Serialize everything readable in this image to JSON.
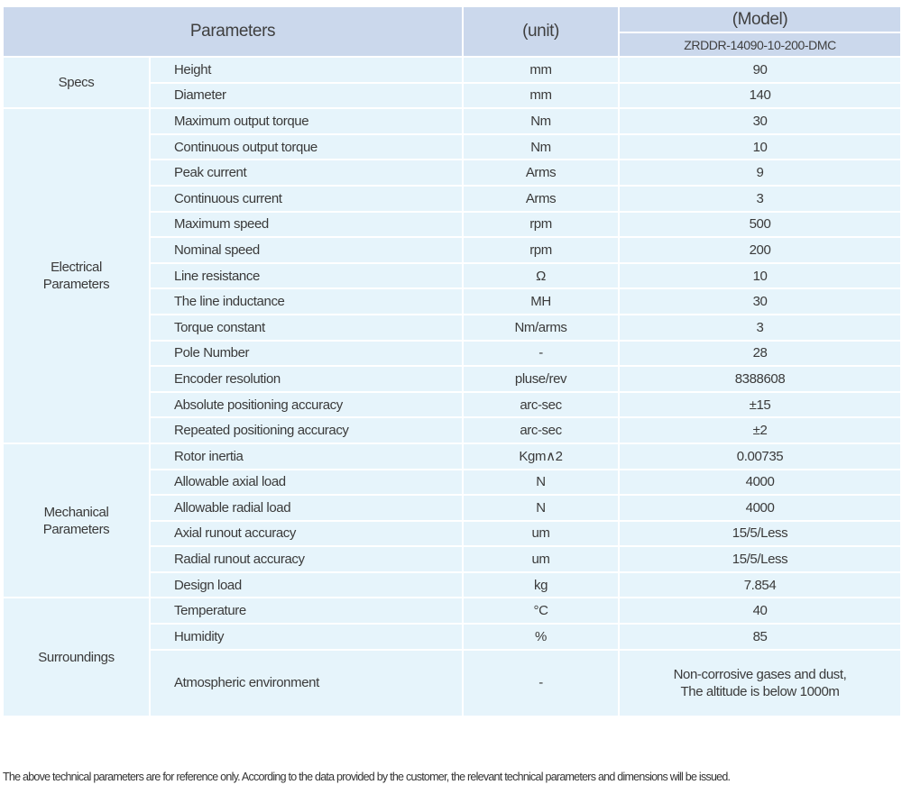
{
  "header": {
    "parameters": "Parameters",
    "unit": "(unit)",
    "model_label": "(Model)",
    "model": "ZRDDR-14090-10-200-DMC"
  },
  "groups": [
    {
      "name": "Specs",
      "rows": [
        {
          "param": "Height",
          "unit": "mm",
          "value": "90"
        },
        {
          "param": "Diameter",
          "unit": "mm",
          "value": "140"
        }
      ]
    },
    {
      "name": "Electrical Parameters",
      "rows": [
        {
          "param": "Maximum output torque",
          "unit": "Nm",
          "value": "30"
        },
        {
          "param": "Continuous output torque",
          "unit": "Nm",
          "value": "10"
        },
        {
          "param": "Peak current",
          "unit": "Arms",
          "value": "9"
        },
        {
          "param": "Continuous current",
          "unit": "Arms",
          "value": "3"
        },
        {
          "param": "Maximum speed",
          "unit": "rpm",
          "value": "500"
        },
        {
          "param": "Nominal speed",
          "unit": "rpm",
          "value": "200"
        },
        {
          "param": "Line resistance",
          "unit": "Ω",
          "value": "10"
        },
        {
          "param": "The line inductance",
          "unit": "MH",
          "value": "30"
        },
        {
          "param": "Torque constant",
          "unit": "Nm/arms",
          "value": "3"
        },
        {
          "param": "Pole Number",
          "unit": "-",
          "value": "28"
        },
        {
          "param": "Encoder resolution",
          "unit": "pluse/rev",
          "value": "8388608"
        },
        {
          "param": "Absolute positioning accuracy",
          "unit": "arc-sec",
          "value": "±15"
        },
        {
          "param": "Repeated positioning accuracy",
          "unit": "arc-sec",
          "value": "±2"
        }
      ]
    },
    {
      "name": "Mechanical Parameters",
      "rows": [
        {
          "param": "Rotor inertia",
          "unit": "Kgm∧2",
          "value": "0.00735"
        },
        {
          "param": "Allowable axial load",
          "unit": "N",
          "value": "4000"
        },
        {
          "param": "Allowable radial load",
          "unit": "N",
          "value": "4000"
        },
        {
          "param": "Axial runout accuracy",
          "unit": "um",
          "value": "15/5/Less"
        },
        {
          "param": "Radial runout accuracy",
          "unit": "um",
          "value": "15/5/Less"
        },
        {
          "param": "Design load",
          "unit": "kg",
          "value": "7.854"
        }
      ]
    },
    {
      "name": "Surroundings",
      "rows": [
        {
          "param": "Temperature",
          "unit": "°C",
          "value": "40"
        },
        {
          "param": "Humidity",
          "unit": "%",
          "value": "85"
        },
        {
          "param": "Atmospheric environment",
          "unit": "-",
          "value": "Non-corrosive gases and dust,",
          "value2": "The altitude is below 1000m"
        }
      ]
    }
  ],
  "note": "The above technical parameters are for reference only. According to the data provided by the customer, the relevant technical parameters and dimensions will be issued."
}
